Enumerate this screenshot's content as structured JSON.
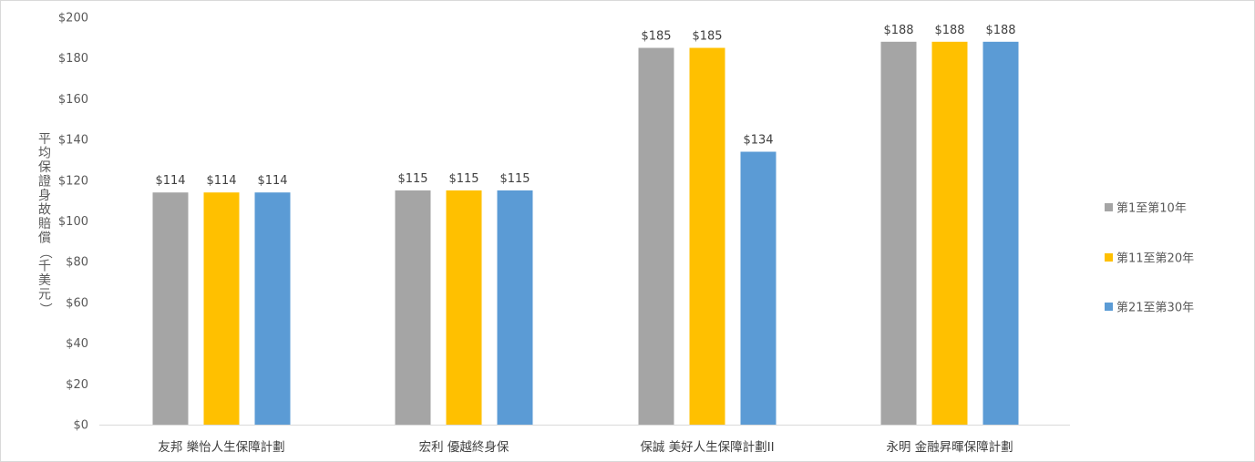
{
  "chart_data": {
    "type": "bar",
    "categories": [
      "友邦 樂怡人生保障計劃",
      "宏利 優越終身保",
      "保誠 美好人生保障計劃II",
      "永明 金融昇暉保障計劃"
    ],
    "series": [
      {
        "name": "第1至第10年",
        "color": "#a5a5a5",
        "values": [
          114,
          115,
          185,
          188
        ]
      },
      {
        "name": "第11至第20年",
        "color": "#ffc000",
        "values": [
          114,
          115,
          185,
          188
        ]
      },
      {
        "name": "第21至第30年",
        "color": "#5b9bd5",
        "values": [
          114,
          115,
          134,
          188
        ]
      }
    ],
    "data_labels": [
      [
        "$114",
        "$115",
        "$185",
        "$188"
      ],
      [
        "$114",
        "$115",
        "$185",
        "$188"
      ],
      [
        "$114",
        "$115",
        "$134",
        "$188"
      ]
    ],
    "ylabel": "平均保證身故賠償（千美元）",
    "ylim": [
      0,
      200
    ],
    "yticks": [
      0,
      20,
      40,
      60,
      80,
      100,
      120,
      140,
      160,
      180,
      200
    ],
    "ytick_labels": [
      "$0",
      "$20",
      "$40",
      "$60",
      "$80",
      "$100",
      "$120",
      "$140",
      "$160",
      "$180",
      "$200"
    ],
    "grid": false,
    "legend_position": "right"
  }
}
